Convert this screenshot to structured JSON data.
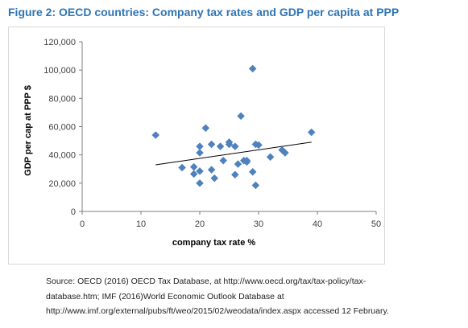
{
  "figure": {
    "title": "Figure 2: OECD countries: Company tax rates and GDP per capita at PPP",
    "source_lines": [
      "Source: OECD (2016) OECD Tax Database, at http://www.oecd.org/tax/tax-policy/tax-",
      "database.htm; IMF (2016)World Economic Outlook Database at",
      "http://www.imf.org/external/pubs/ft/weo/2015/02/weodata/index.aspx accessed 12 February."
    ]
  },
  "colors": {
    "title": "#2e74b5",
    "marker": "#4f81bd",
    "trendline": "#000000",
    "axis": "#7f7f7f",
    "frame": "#d9d9d9"
  },
  "chart_data": {
    "type": "scatter",
    "marker": "diamond",
    "xlabel": "company tax rate %",
    "ylabel": "GDP per cap at PPP $",
    "xlim": [
      0,
      50
    ],
    "ylim": [
      0,
      120000
    ],
    "x_ticks": [
      0,
      10,
      20,
      30,
      40,
      50
    ],
    "y_ticks": [
      0,
      20000,
      40000,
      60000,
      80000,
      100000,
      120000
    ],
    "x_tick_labels": [
      "0",
      "10",
      "20",
      "30",
      "40",
      "50"
    ],
    "y_tick_labels": [
      "0",
      "20,000",
      "40,000",
      "60,000",
      "80,000",
      "100,000",
      "120,000"
    ],
    "grid": false,
    "legend": "none",
    "points": [
      {
        "x": 12.5,
        "y": 54000
      },
      {
        "x": 17.0,
        "y": 31000
      },
      {
        "x": 19.0,
        "y": 26500
      },
      {
        "x": 19.0,
        "y": 31500
      },
      {
        "x": 20.0,
        "y": 46000
      },
      {
        "x": 20.0,
        "y": 41500
      },
      {
        "x": 20.0,
        "y": 28500
      },
      {
        "x": 20.0,
        "y": 20000
      },
      {
        "x": 21.0,
        "y": 59000
      },
      {
        "x": 22.0,
        "y": 47500
      },
      {
        "x": 22.0,
        "y": 29500
      },
      {
        "x": 22.5,
        "y": 23500
      },
      {
        "x": 23.5,
        "y": 46000
      },
      {
        "x": 24.0,
        "y": 36000
      },
      {
        "x": 25.0,
        "y": 49000
      },
      {
        "x": 25.0,
        "y": 47500
      },
      {
        "x": 26.0,
        "y": 26000
      },
      {
        "x": 26.0,
        "y": 46000
      },
      {
        "x": 26.5,
        "y": 33500
      },
      {
        "x": 27.0,
        "y": 67500
      },
      {
        "x": 27.5,
        "y": 36000
      },
      {
        "x": 28.0,
        "y": 35000
      },
      {
        "x": 28.0,
        "y": 36000
      },
      {
        "x": 29.0,
        "y": 28000
      },
      {
        "x": 29.5,
        "y": 47500
      },
      {
        "x": 29.0,
        "y": 101000
      },
      {
        "x": 29.5,
        "y": 18500
      },
      {
        "x": 30.0,
        "y": 47000
      },
      {
        "x": 32.0,
        "y": 38500
      },
      {
        "x": 34.0,
        "y": 43500
      },
      {
        "x": 34.5,
        "y": 41500
      },
      {
        "x": 39.0,
        "y": 56000
      }
    ],
    "trendline": {
      "x": [
        12.5,
        39.0
      ],
      "y": [
        33000,
        49000
      ]
    }
  }
}
